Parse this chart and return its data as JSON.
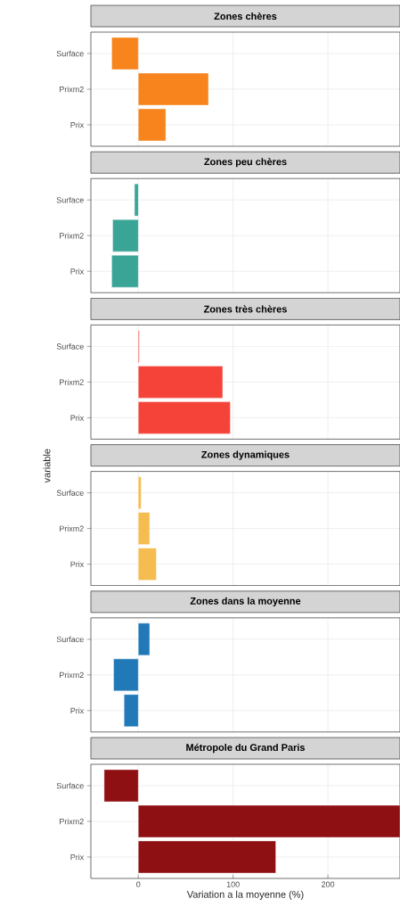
{
  "chart_data": [
    {
      "type": "bar",
      "orientation": "horizontal",
      "title": "Zones chères",
      "categories": [
        "Surface",
        "Prixm2",
        "Prix"
      ],
      "values": [
        -28,
        74,
        29
      ],
      "color": "#f7841c",
      "xlim": [
        -50,
        276
      ],
      "xticks": [
        0,
        100,
        200
      ],
      "grid": true,
      "tick_labels": "y"
    },
    {
      "type": "bar",
      "orientation": "horizontal",
      "title": "Zones peu chères",
      "categories": [
        "Surface",
        "Prixm2",
        "Prix"
      ],
      "values": [
        -4,
        -27,
        -28
      ],
      "color": "#3aa597",
      "xlim": [
        -50,
        276
      ],
      "xticks": [
        0,
        100,
        200
      ],
      "grid": true,
      "tick_labels": "y"
    },
    {
      "type": "bar",
      "orientation": "horizontal",
      "title": "Zones très chères",
      "categories": [
        "Surface",
        "Prixm2",
        "Prix"
      ],
      "values": [
        1,
        89,
        97
      ],
      "color": "#f5433a",
      "xlim": [
        -50,
        276
      ],
      "xticks": [
        0,
        100,
        200
      ],
      "grid": true,
      "tick_labels": "y"
    },
    {
      "type": "bar",
      "orientation": "horizontal",
      "title": "Zones dynamiques",
      "ylabel": "variable",
      "categories": [
        "Surface",
        "Prixm2",
        "Prix"
      ],
      "values": [
        3,
        12,
        19
      ],
      "color": "#f5bd4f",
      "xlim": [
        -50,
        276
      ],
      "xticks": [
        0,
        100,
        200
      ],
      "grid": true,
      "tick_labels": "y"
    },
    {
      "type": "bar",
      "orientation": "horizontal",
      "title": "Zones dans la moyenne",
      "categories": [
        "Surface",
        "Prixm2",
        "Prix"
      ],
      "values": [
        12,
        -26,
        -15
      ],
      "color": "#2179b8",
      "xlim": [
        -50,
        276
      ],
      "xticks": [
        0,
        100,
        200
      ],
      "grid": true,
      "tick_labels": "y"
    },
    {
      "type": "bar",
      "orientation": "horizontal",
      "title": "Métropole du Grand Paris",
      "xlabel": "Variation a la moyenne (%)",
      "categories": [
        "Surface",
        "Prixm2",
        "Prix"
      ],
      "values": [
        -36,
        276,
        145
      ],
      "color": "#8f1013",
      "xlim": [
        -50,
        276
      ],
      "xticks": [
        0,
        100,
        200
      ],
      "grid": true
    }
  ]
}
